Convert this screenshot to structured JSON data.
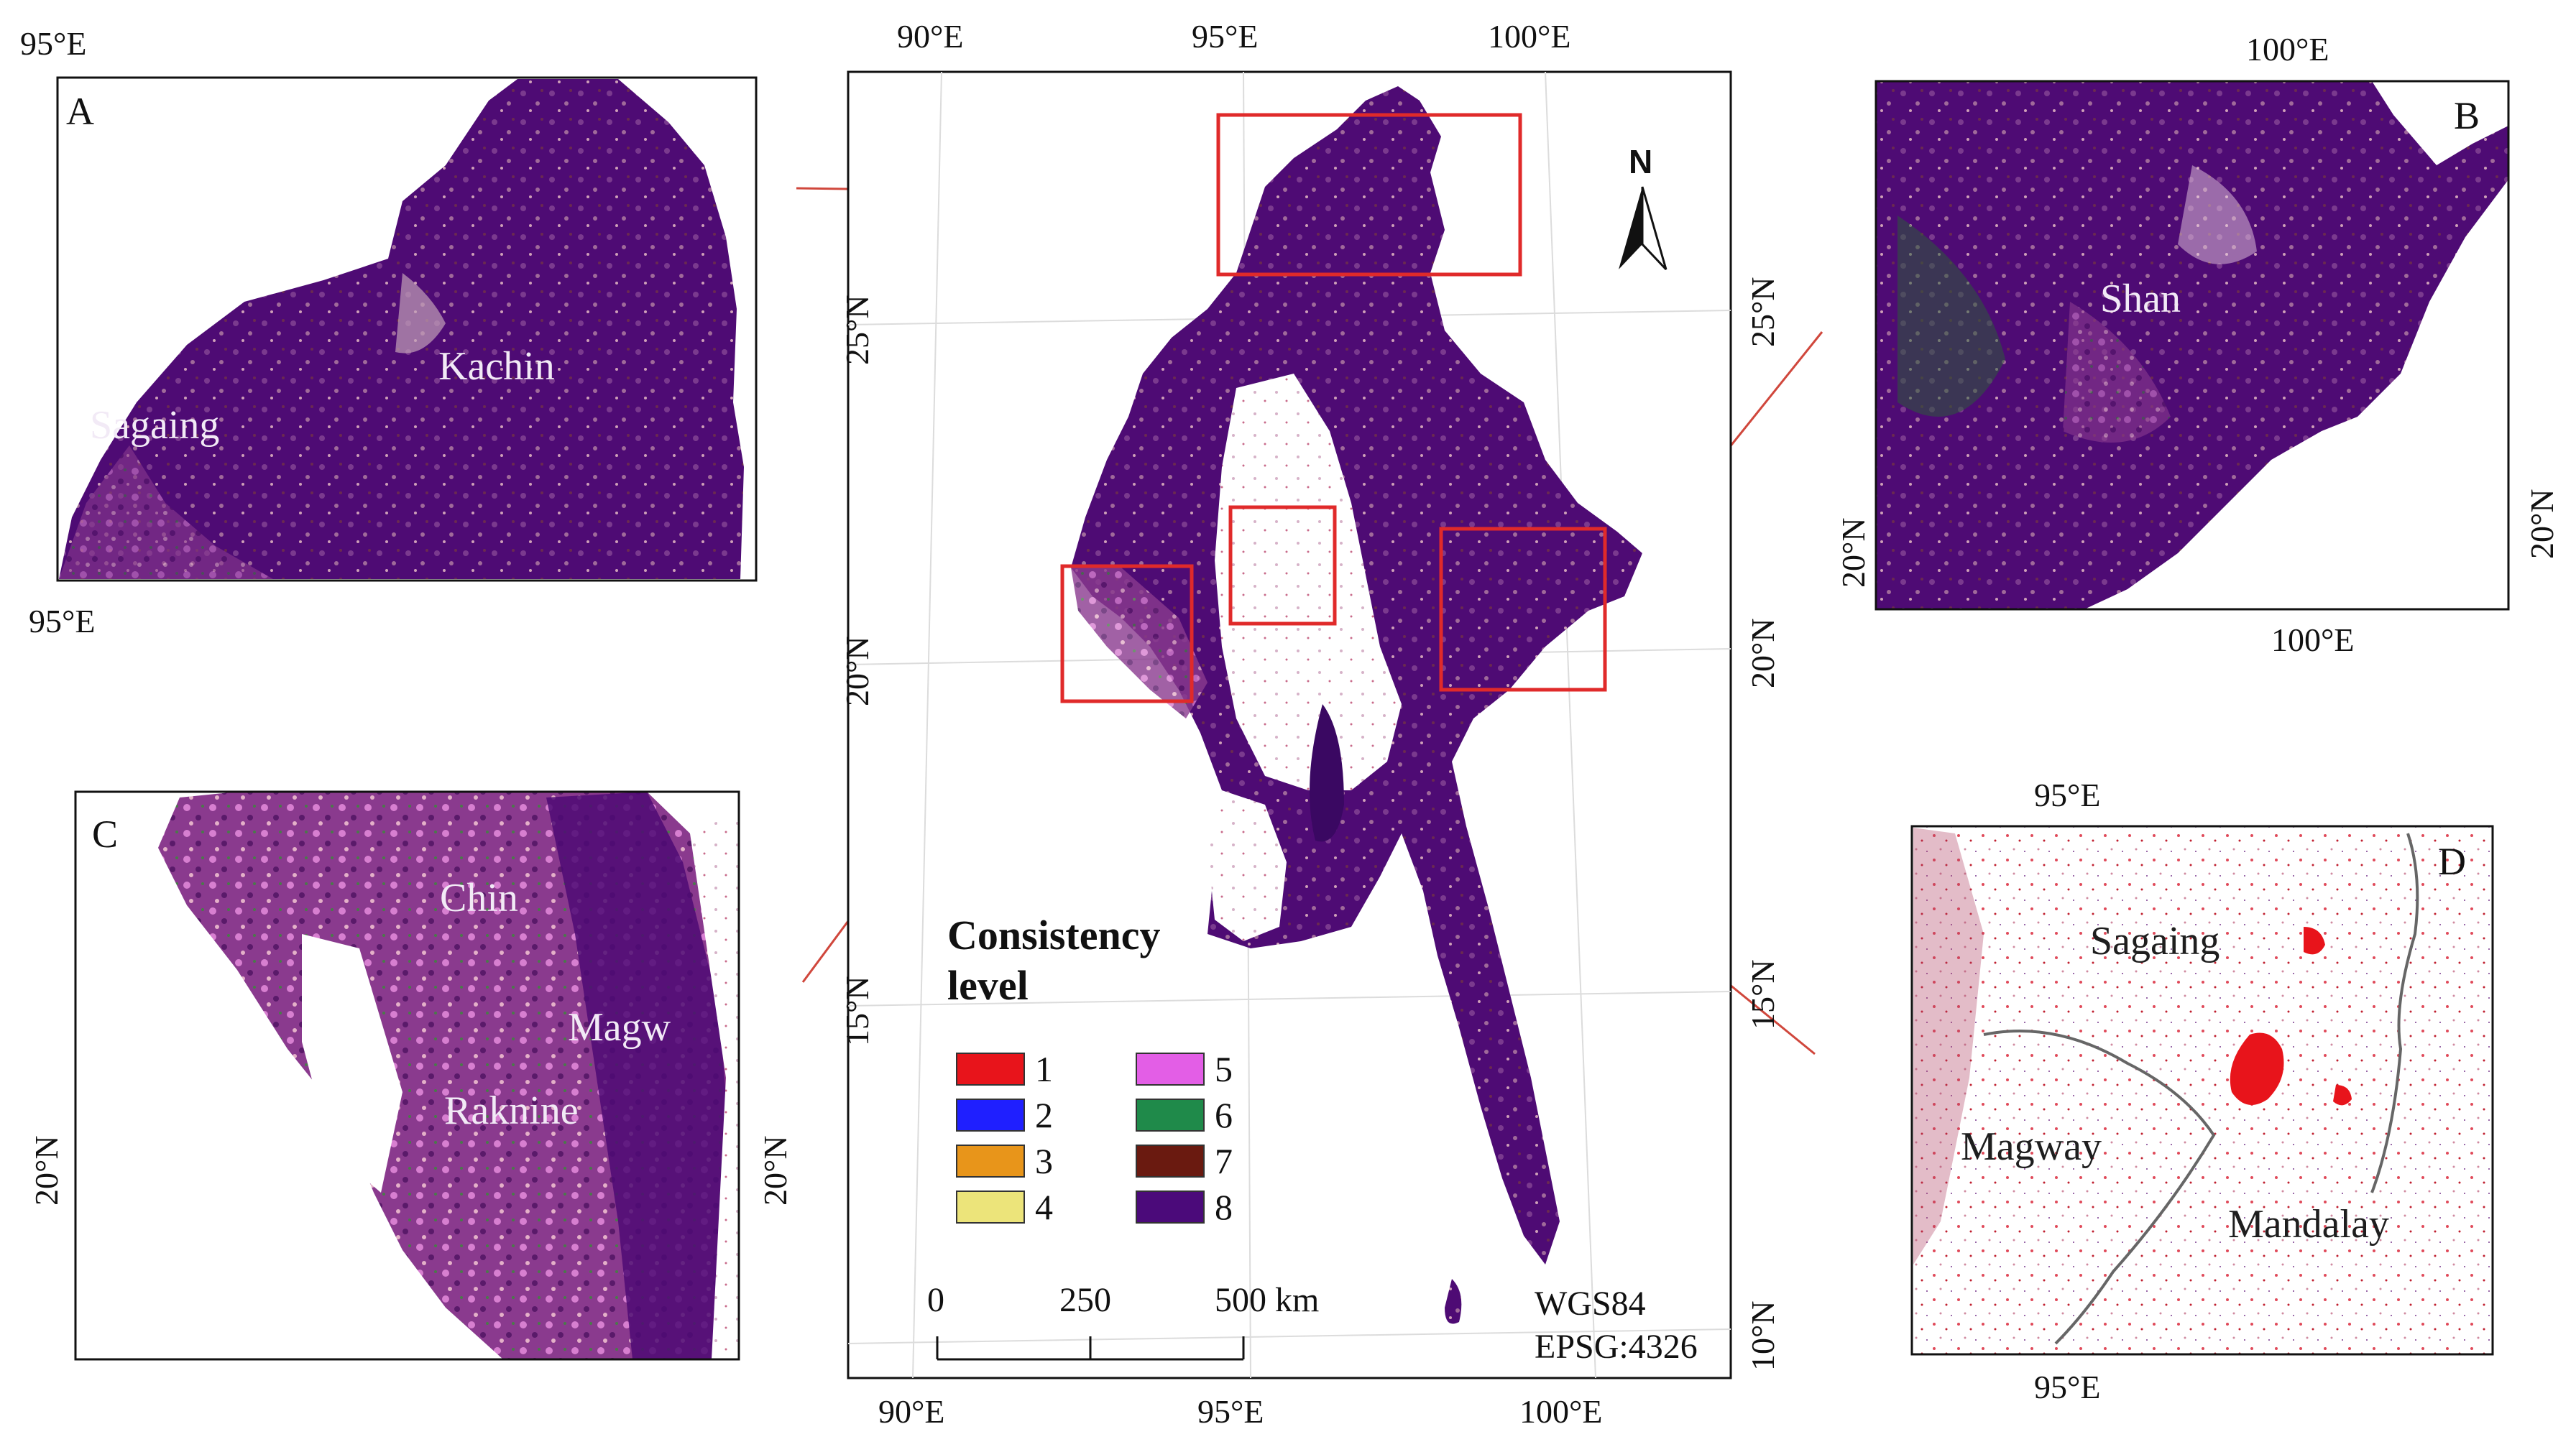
{
  "panels": {
    "A": {
      "letter": "A",
      "labels": {
        "Kachin": "Kachin",
        "Sagaing": "Sagaing"
      },
      "ticks": {
        "top_left": "95°E",
        "bottom_left": "95°E"
      }
    },
    "B": {
      "letter": "B",
      "labels": {
        "Shan": "Shan"
      },
      "ticks": {
        "top": "100°E",
        "bottom": "100°E",
        "left": "20°N",
        "right": "20°N"
      }
    },
    "C": {
      "letter": "C",
      "labels": {
        "Chin": "Chin",
        "Magway": "Magw",
        "Raknine": "Raknine"
      },
      "ticks": {
        "left": "20°N",
        "right": "20°N"
      }
    },
    "D": {
      "letter": "D",
      "labels": {
        "Sagaing": "Sagaing",
        "Magway": "Magway",
        "Mandalay": "Mandalay"
      },
      "ticks": {
        "top": "95°E",
        "bottom": "95°E"
      }
    }
  },
  "main_map": {
    "ticks": {
      "top": [
        "90°E",
        "95°E",
        "100°E"
      ],
      "bottom": [
        "90°E",
        "95°E",
        "100°E"
      ],
      "left": [
        "25°N",
        "20°N",
        "15°N"
      ],
      "right": [
        "25°N",
        "20°N",
        "15°N",
        "10°N"
      ]
    },
    "north_arrow": "N",
    "scale_bar": {
      "labels": [
        "0",
        "250",
        "500 km"
      ]
    },
    "crs": [
      "WGS84",
      "EPSG:4326"
    ],
    "legend": {
      "title_line1": "Consistency",
      "title_line2": "level",
      "items": [
        {
          "label": "1",
          "color": "#e8141b"
        },
        {
          "label": "2",
          "color": "#1f1fff"
        },
        {
          "label": "3",
          "color": "#e8951a"
        },
        {
          "label": "4",
          "color": "#ece47a"
        },
        {
          "label": "5",
          "color": "#e35ee6"
        },
        {
          "label": "6",
          "color": "#1f8a4a"
        },
        {
          "label": "7",
          "color": "#6a1a10"
        },
        {
          "label": "8",
          "color": "#4b0a7a"
        }
      ]
    }
  }
}
